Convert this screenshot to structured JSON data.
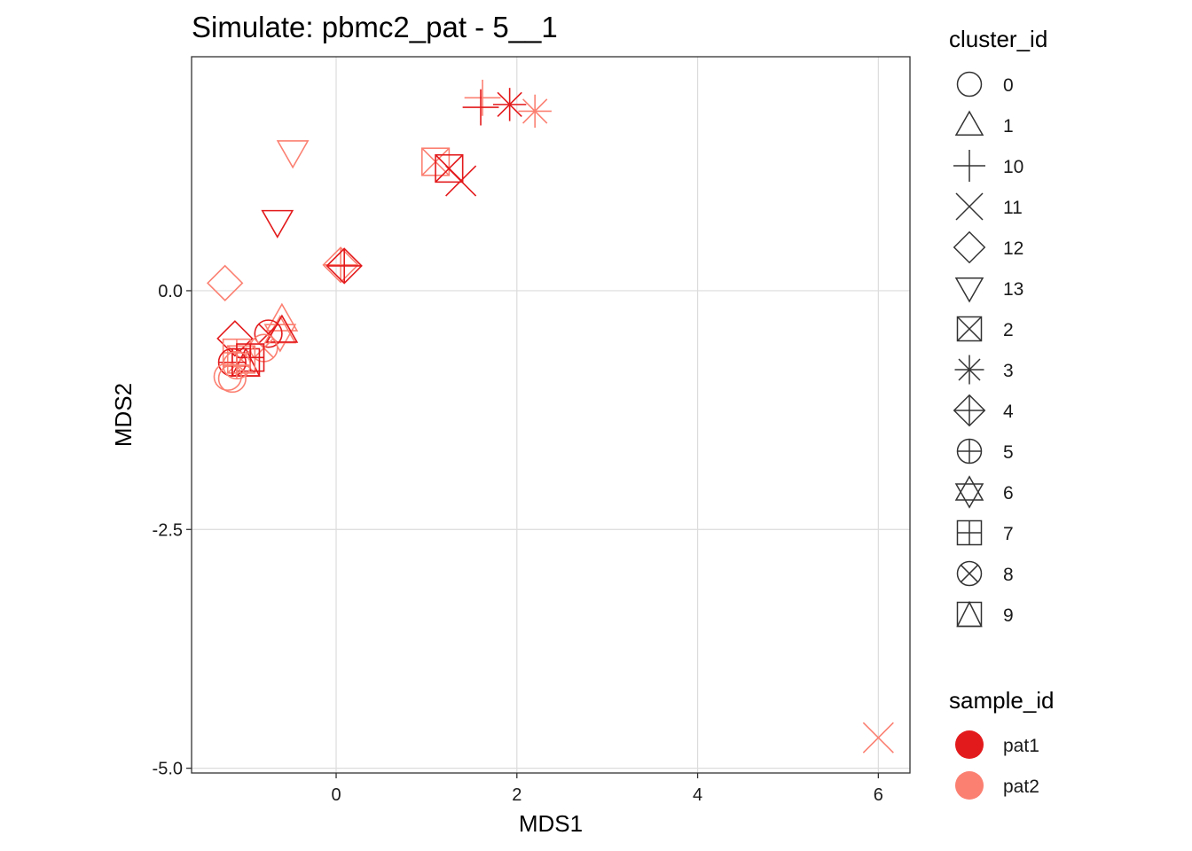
{
  "chart_data": {
    "type": "scatter",
    "title": "Simulate: pbmc2_pat - 5__1",
    "xlabel": "MDS1",
    "ylabel": "MDS2",
    "xlim": [
      -1.6,
      6.35
    ],
    "ylim": [
      -5.05,
      2.45
    ],
    "x_ticks": [
      0,
      2,
      4,
      6
    ],
    "y_ticks": [
      0.0,
      -2.5,
      -5.0
    ],
    "x_tick_labels": [
      "0",
      "2",
      "4",
      "6"
    ],
    "y_tick_labels": [
      "0.0",
      "-2.5",
      "-5.0"
    ],
    "grid": true,
    "colors": {
      "pat1": "#e31a1c",
      "pat2": "#fb8072"
    },
    "legend_cluster": {
      "title": "cluster_id",
      "items": [
        {
          "label": "0",
          "shape": "circle-icon"
        },
        {
          "label": "1",
          "shape": "triangle-up-icon"
        },
        {
          "label": "10",
          "shape": "plus-icon"
        },
        {
          "label": "11",
          "shape": "cross-icon"
        },
        {
          "label": "12",
          "shape": "diamond-icon"
        },
        {
          "label": "13",
          "shape": "triangle-down-icon"
        },
        {
          "label": "2",
          "shape": "square-cross-icon"
        },
        {
          "label": "3",
          "shape": "asterisk-icon"
        },
        {
          "label": "4",
          "shape": "diamond-plus-icon"
        },
        {
          "label": "5",
          "shape": "circle-plus-icon"
        },
        {
          "label": "6",
          "shape": "star-of-david-icon"
        },
        {
          "label": "7",
          "shape": "square-plus-icon"
        },
        {
          "label": "8",
          "shape": "circle-cross-icon"
        },
        {
          "label": "9",
          "shape": "square-triangle-icon"
        }
      ]
    },
    "legend_sample": {
      "title": "sample_id",
      "items": [
        {
          "label": "pat1",
          "color": "#e31a1c"
        },
        {
          "label": "pat2",
          "color": "#fb8072"
        }
      ]
    },
    "points": [
      {
        "x": 1.62,
        "y": 2.02,
        "cluster": "10",
        "sample": "pat2"
      },
      {
        "x": 1.6,
        "y": 1.92,
        "cluster": "10",
        "sample": "pat1"
      },
      {
        "x": 1.92,
        "y": 1.95,
        "cluster": "3",
        "sample": "pat1"
      },
      {
        "x": 2.2,
        "y": 1.88,
        "cluster": "3",
        "sample": "pat2"
      },
      {
        "x": -0.48,
        "y": 1.45,
        "cluster": "13",
        "sample": "pat2"
      },
      {
        "x": -0.65,
        "y": 0.72,
        "cluster": "13",
        "sample": "pat1"
      },
      {
        "x": 1.1,
        "y": 1.35,
        "cluster": "2",
        "sample": "pat2"
      },
      {
        "x": 1.25,
        "y": 1.28,
        "cluster": "2",
        "sample": "pat1"
      },
      {
        "x": 1.38,
        "y": 1.15,
        "cluster": "11",
        "sample": "pat1"
      },
      {
        "x": -1.23,
        "y": 0.08,
        "cluster": "12",
        "sample": "pat2"
      },
      {
        "x": 0.05,
        "y": 0.27,
        "cluster": "4",
        "sample": "pat2"
      },
      {
        "x": 0.09,
        "y": 0.26,
        "cluster": "4",
        "sample": "pat1"
      },
      {
        "x": -1.12,
        "y": -0.5,
        "cluster": "12",
        "sample": "pat1"
      },
      {
        "x": -0.6,
        "y": -0.3,
        "cluster": "1",
        "sample": "pat2"
      },
      {
        "x": -0.62,
        "y": -0.45,
        "cluster": "6",
        "sample": "pat2"
      },
      {
        "x": -0.6,
        "y": -0.42,
        "cluster": "1",
        "sample": "pat1"
      },
      {
        "x": -0.75,
        "y": -0.45,
        "cluster": "8",
        "sample": "pat1"
      },
      {
        "x": -0.8,
        "y": -0.6,
        "cluster": "8",
        "sample": "pat2"
      },
      {
        "x": -1.1,
        "y": -0.65,
        "cluster": "7",
        "sample": "pat2"
      },
      {
        "x": -1.0,
        "y": -0.75,
        "cluster": "9",
        "sample": "pat1"
      },
      {
        "x": -1.05,
        "y": -0.72,
        "cluster": "2",
        "sample": "pat2"
      },
      {
        "x": -0.95,
        "y": -0.7,
        "cluster": "7",
        "sample": "pat1"
      },
      {
        "x": -1.15,
        "y": -0.75,
        "cluster": "5",
        "sample": "pat1"
      },
      {
        "x": -1.2,
        "y": -0.9,
        "cluster": "0",
        "sample": "pat2"
      },
      {
        "x": -1.15,
        "y": -0.92,
        "cluster": "0",
        "sample": "pat2"
      },
      {
        "x": -1.1,
        "y": -0.78,
        "cluster": "5",
        "sample": "pat2"
      },
      {
        "x": 6.0,
        "y": -4.68,
        "cluster": "11",
        "sample": "pat2"
      }
    ]
  }
}
